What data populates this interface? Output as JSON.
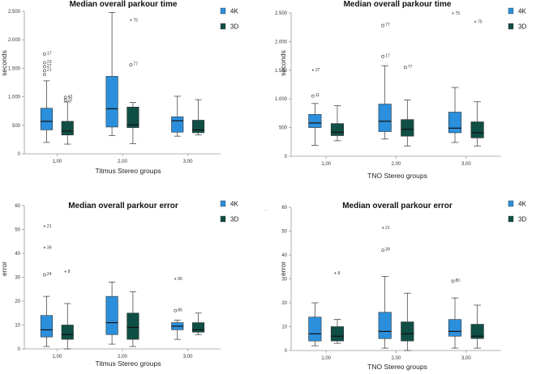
{
  "chart_data": [
    {
      "type": "boxplot",
      "title": "Median overall parkour time",
      "xlabel": "Titmus Stereo groups",
      "ylabel": "seconds",
      "ylim": [
        0,
        2500
      ],
      "yticks": [
        0,
        500,
        1000,
        1500,
        2000,
        2500
      ],
      "ytick_labels": [
        "0",
        "500",
        "1.000",
        "1.500",
        "2.000",
        "2.500"
      ],
      "categories": [
        "1,00",
        "2,00",
        "3,00"
      ],
      "legend": [
        {
          "name": "4K",
          "color": "#2b8fdb"
        },
        {
          "name": "3D",
          "color": "#0f4f45"
        }
      ],
      "extra_mark": "",
      "series": [
        {
          "name": "4K",
          "boxes": [
            {
              "whislo": 200,
              "q1": 420,
              "med": 570,
              "q3": 800,
              "whishi": 1280,
              "outliers": [
                {
                  "v": 1750,
                  "label": "17",
                  "mark": "o"
                },
                {
                  "v": 1600,
                  "label": "23",
                  "mark": "o"
                },
                {
                  "v": 1530,
                  "label": "27",
                  "mark": "o"
                },
                {
                  "v": 1460,
                  "label": "21",
                  "mark": "o"
                },
                {
                  "v": 1390,
                  "label": "",
                  "mark": "o"
                }
              ]
            },
            {
              "whislo": 320,
              "q1": 470,
              "med": 790,
              "q3": 1360,
              "whishi": 2480,
              "outliers": []
            },
            {
              "whislo": 310,
              "q1": 380,
              "med": 580,
              "q3": 650,
              "whishi": 1010,
              "outliers": []
            }
          ]
        },
        {
          "name": "3D",
          "boxes": [
            {
              "whislo": 170,
              "q1": 330,
              "med": 400,
              "q3": 570,
              "whishi": 910,
              "outliers": [
                {
                  "v": 990,
                  "label": "42",
                  "mark": "o"
                },
                {
                  "v": 940,
                  "label": "32",
                  "mark": "o"
                }
              ]
            },
            {
              "whislo": 180,
              "q1": 460,
              "med": 510,
              "q3": 820,
              "whishi": 900,
              "outliers": [
                {
                  "v": 2330,
                  "label": "75",
                  "mark": "*"
                },
                {
                  "v": 1560,
                  "label": "77",
                  "mark": "o"
                }
              ]
            },
            {
              "whislo": 330,
              "q1": 370,
              "med": 420,
              "q3": 590,
              "whishi": 950,
              "outliers": []
            }
          ]
        }
      ]
    },
    {
      "type": "boxplot",
      "title": "Median overall parkour time",
      "xlabel": "TNO Stereo groups",
      "ylabel": "seconds",
      "ylim": [
        0,
        2500
      ],
      "yticks": [
        0,
        500,
        1000,
        1500,
        2000,
        2500
      ],
      "ytick_labels": [
        "0",
        "500",
        "1.000",
        "1.500",
        "2.000",
        "2.500"
      ],
      "categories": [
        "1,00",
        "2,00",
        "3,00"
      ],
      "legend": [
        {
          "name": "4K",
          "color": "#2b8fdb"
        },
        {
          "name": "3D",
          "color": "#0f4f45"
        }
      ],
      "extra_mark": "",
      "series": [
        {
          "name": "4K",
          "boxes": [
            {
              "whislo": 190,
              "q1": 500,
              "med": 580,
              "q3": 730,
              "whishi": 920,
              "outliers": [
                {
                  "v": 1490,
                  "label": "27",
                  "mark": "*"
                },
                {
                  "v": 1050,
                  "label": "11",
                  "mark": "o"
                }
              ]
            },
            {
              "whislo": 300,
              "q1": 430,
              "med": 610,
              "q3": 910,
              "whishi": 1580,
              "outliers": [
                {
                  "v": 2280,
                  "label": "77",
                  "mark": "o"
                },
                {
                  "v": 1740,
                  "label": "17",
                  "mark": "o"
                }
              ]
            },
            {
              "whislo": 240,
              "q1": 410,
              "med": 490,
              "q3": 770,
              "whishi": 1200,
              "outliers": [
                {
                  "v": 2480,
                  "label": "75",
                  "mark": "*"
                }
              ]
            }
          ]
        },
        {
          "name": "3D",
          "boxes": [
            {
              "whislo": 270,
              "q1": 360,
              "med": 420,
              "q3": 570,
              "whishi": 880,
              "outliers": []
            },
            {
              "whislo": 180,
              "q1": 350,
              "med": 470,
              "q3": 640,
              "whishi": 980,
              "outliers": [
                {
                  "v": 1550,
                  "label": "77",
                  "mark": "o"
                }
              ]
            },
            {
              "whislo": 180,
              "q1": 320,
              "med": 410,
              "q3": 600,
              "whishi": 950,
              "outliers": [
                {
                  "v": 2330,
                  "label": "75",
                  "mark": "*"
                }
              ]
            }
          ]
        }
      ]
    },
    {
      "type": "boxplot",
      "title": "Median overall parkour error",
      "xlabel": "Titmus Stereo groups",
      "ylabel": "error",
      "ylim": [
        0,
        60
      ],
      "yticks": [
        0,
        10,
        20,
        30,
        40,
        50,
        60
      ],
      "ytick_labels": [
        "0",
        "10",
        "20",
        "30",
        "40",
        "50",
        "60"
      ],
      "categories": [
        "1,00",
        "2,00",
        "3,00"
      ],
      "legend": [
        {
          "name": "4K",
          "color": "#2b8fdb"
        },
        {
          "name": "3D",
          "color": "#0f4f45"
        }
      ],
      "extra_mark": "...",
      "series": [
        {
          "name": "4K",
          "boxes": [
            {
              "whislo": 1,
              "q1": 5,
              "med": 8,
              "q3": 14,
              "whishi": 22,
              "outliers": [
                {
                  "v": 51,
                  "label": "21",
                  "mark": "*"
                },
                {
                  "v": 42,
                  "label": "39",
                  "mark": "*"
                },
                {
                  "v": 31,
                  "label": "24",
                  "mark": "o"
                }
              ]
            },
            {
              "whislo": 2,
              "q1": 6,
              "med": 11,
              "q3": 22,
              "whishi": 28,
              "outliers": []
            },
            {
              "whislo": 4,
              "q1": 8,
              "med": 9.5,
              "q3": 11,
              "whishi": 12,
              "outliers": [
                {
                  "v": 29,
                  "label": "80",
                  "mark": "*"
                },
                {
                  "v": 16,
                  "label": "86",
                  "mark": "o"
                }
              ]
            }
          ]
        },
        {
          "name": "3D",
          "boxes": [
            {
              "whislo": 0,
              "q1": 4,
              "med": 6,
              "q3": 10,
              "whishi": 19,
              "outliers": [
                {
                  "v": 32,
                  "label": "8",
                  "mark": "*"
                }
              ]
            },
            {
              "whislo": 1,
              "q1": 4,
              "med": 9,
              "q3": 15,
              "whishi": 24,
              "outliers": []
            },
            {
              "whislo": 6,
              "q1": 7,
              "med": 8,
              "q3": 11,
              "whishi": 15,
              "outliers": []
            }
          ]
        }
      ]
    },
    {
      "type": "boxplot",
      "title": "Median overall parkour error",
      "xlabel": "TNO Stereo groups",
      "ylabel": "error",
      "ylim": [
        0,
        60
      ],
      "yticks": [
        0,
        10,
        20,
        30,
        40,
        50,
        60
      ],
      "ytick_labels": [
        "0",
        "10",
        "20",
        "30",
        "40",
        "50",
        "60"
      ],
      "categories": [
        "1,00",
        "2,00",
        "3,00"
      ],
      "legend": [
        {
          "name": "4K",
          "color": "#2b8fdb"
        },
        {
          "name": "3D",
          "color": "#0f4f45"
        }
      ],
      "extra_mark": "...",
      "series": [
        {
          "name": "4K",
          "boxes": [
            {
              "whislo": 2,
              "q1": 4,
              "med": 7,
              "q3": 14,
              "whishi": 20,
              "outliers": []
            },
            {
              "whislo": 1,
              "q1": 5,
              "med": 8,
              "q3": 16,
              "whishi": 31,
              "outliers": [
                {
                  "v": 51,
                  "label": "21",
                  "mark": "*"
                },
                {
                  "v": 42,
                  "label": "39",
                  "mark": "o"
                }
              ]
            },
            {
              "whislo": 1,
              "q1": 6,
              "med": 8,
              "q3": 13,
              "whishi": 22,
              "outliers": [
                {
                  "v": 29,
                  "label": "80",
                  "mark": "o"
                }
              ]
            }
          ]
        },
        {
          "name": "3D",
          "boxes": [
            {
              "whislo": 3,
              "q1": 4,
              "med": 6,
              "q3": 10,
              "whishi": 13,
              "outliers": [
                {
                  "v": 32,
                  "label": "8",
                  "mark": "*"
                }
              ]
            },
            {
              "whislo": 0,
              "q1": 4,
              "med": 7,
              "q3": 12,
              "whishi": 24,
              "outliers": []
            },
            {
              "whislo": 1,
              "q1": 5,
              "med": 6,
              "q3": 11,
              "whishi": 19,
              "outliers": []
            }
          ]
        }
      ]
    }
  ]
}
